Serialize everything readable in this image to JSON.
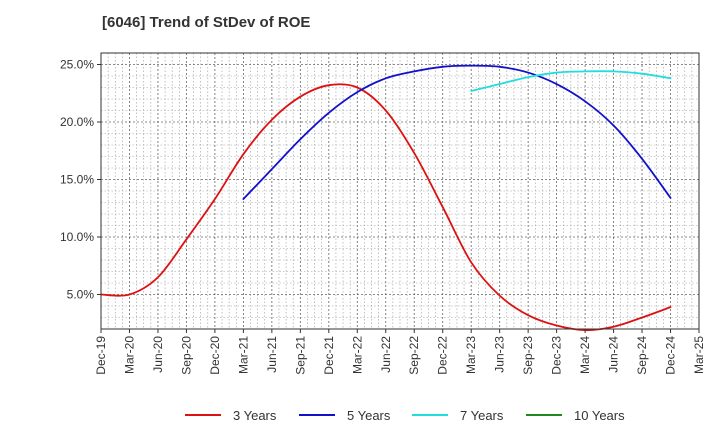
{
  "chart_data": {
    "type": "line",
    "title": "[6046]  Trend of StDev of ROE",
    "xlabel": "",
    "ylabel": "",
    "x_ticks": [
      "Dec-19",
      "Mar-20",
      "Jun-20",
      "Sep-20",
      "Dec-20",
      "Mar-21",
      "Jun-21",
      "Sep-21",
      "Dec-21",
      "Mar-22",
      "Jun-22",
      "Sep-22",
      "Dec-22",
      "Mar-23",
      "Jun-23",
      "Sep-23",
      "Dec-23",
      "Mar-24",
      "Jun-24",
      "Sep-24",
      "Dec-24",
      "Mar-25"
    ],
    "y_ticks": [
      "5.0%",
      "10.0%",
      "15.0%",
      "20.0%",
      "25.0%"
    ],
    "y_tick_values": [
      5,
      10,
      15,
      20,
      25
    ],
    "ylim": [
      2.0,
      26.0
    ],
    "grid": true,
    "legend_position": "bottom",
    "series": [
      {
        "name": "3 Years",
        "color": "#dd1111",
        "x": [
          "Dec-19",
          "Mar-20",
          "Jun-20",
          "Sep-20",
          "Dec-20",
          "Mar-21",
          "Jun-21",
          "Sep-21",
          "Dec-21",
          "Mar-22",
          "Jun-22",
          "Sep-22",
          "Dec-22",
          "Mar-23",
          "Jun-23",
          "Sep-23",
          "Dec-23",
          "Mar-24",
          "Jun-24",
          "Sep-24",
          "Dec-24"
        ],
        "values": [
          5.0,
          5.0,
          6.5,
          9.8,
          13.3,
          17.2,
          20.2,
          22.2,
          23.2,
          23.0,
          21.0,
          17.3,
          12.6,
          7.8,
          4.9,
          3.2,
          2.3,
          1.9,
          2.2,
          3.0,
          3.9
        ]
      },
      {
        "name": "5 Years",
        "color": "#1111cc",
        "x": [
          "Mar-21",
          "Jun-21",
          "Sep-21",
          "Dec-21",
          "Mar-22",
          "Jun-22",
          "Sep-22",
          "Dec-22",
          "Mar-23",
          "Jun-23",
          "Sep-23",
          "Dec-23",
          "Mar-24",
          "Jun-24",
          "Sep-24",
          "Dec-24"
        ],
        "values": [
          13.3,
          15.9,
          18.5,
          20.8,
          22.6,
          23.8,
          24.4,
          24.8,
          24.9,
          24.8,
          24.3,
          23.3,
          21.8,
          19.7,
          16.8,
          13.4
        ]
      },
      {
        "name": "7 Years",
        "color": "#22dddd",
        "x": [
          "Mar-23",
          "Jun-23",
          "Sep-23",
          "Dec-23",
          "Mar-24",
          "Jun-24",
          "Sep-24",
          "Dec-24"
        ],
        "values": [
          22.7,
          23.3,
          23.9,
          24.3,
          24.4,
          24.4,
          24.2,
          23.8
        ]
      },
      {
        "name": "10 Years",
        "color": "#228822",
        "x": [],
        "values": []
      }
    ]
  }
}
